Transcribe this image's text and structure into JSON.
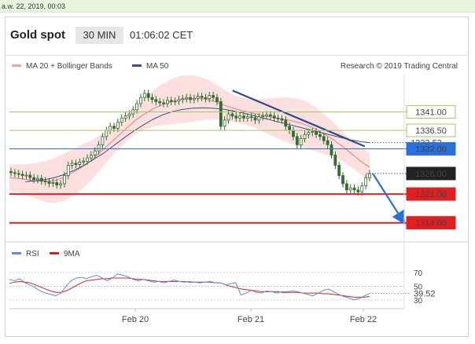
{
  "topbar": {
    "text": "a.w. 22, 2019, 00:03"
  },
  "header": {
    "title": "Gold spot",
    "interval": "30 MIN",
    "time": "01:06:02 CET"
  },
  "legend": {
    "bollinger_label": "MA 20 + Bollinger Bands",
    "ma50_label": "MA 50",
    "credit": "Research © 2019 Trading Central",
    "rsi_label": "RSI",
    "rsi_ma_label": "9MA"
  },
  "colors": {
    "green_level": "#9cc868",
    "blue_level": "#2b6fd9",
    "red_level": "#e02020",
    "dark_label": "#222222",
    "trend_line": "#2e4a8f",
    "bollinger_fill": "#fbdada",
    "ma20": "#e08080",
    "ma50": "#3a4f8a",
    "rsi_line": "#5b8fd8",
    "rsi_ma": "#d82020",
    "candle": "#2f6f2f"
  },
  "chart_data": [
    {
      "type": "candlestick",
      "title": "Gold spot",
      "interval": "30 MIN",
      "x_tick_labels": [
        "Feb 20",
        "Feb 21",
        "Feb 22"
      ],
      "ylim": [
        1310.5,
        1349.5
      ],
      "price_levels": [
        {
          "value": 1341.0,
          "label": "1341.00",
          "kind": "resistance",
          "color": "green"
        },
        {
          "value": 1336.5,
          "label": "1336.50",
          "kind": "resistance",
          "color": "green"
        },
        {
          "value": 1333.52,
          "label": "1333.52",
          "kind": "current-ma",
          "color": "dotted"
        },
        {
          "value": 1332.0,
          "label": "1332.00",
          "kind": "pivot",
          "color": "blue"
        },
        {
          "value": 1326.0,
          "label": "1326.00",
          "kind": "last",
          "color": "dark"
        },
        {
          "value": 1321.0,
          "label": "1321.00",
          "kind": "support",
          "color": "red"
        },
        {
          "value": 1314.0,
          "label": "1314.00",
          "kind": "support",
          "color": "red"
        }
      ],
      "close_series": [
        1326.2,
        1326.0,
        1325.8,
        1325.5,
        1325.6,
        1325.0,
        1324.5,
        1324.8,
        1324.2,
        1324.0,
        1323.6,
        1323.8,
        1323.2,
        1323.5,
        1325.5,
        1328.0,
        1328.5,
        1328.2,
        1328.8,
        1329.0,
        1329.8,
        1330.5,
        1331.5,
        1333.0,
        1335.0,
        1336.5,
        1337.5,
        1337.0,
        1338.5,
        1339.5,
        1340.0,
        1340.5,
        1341.5,
        1343.0,
        1344.5,
        1345.5,
        1344.5,
        1344.0,
        1343.5,
        1343.2,
        1343.0,
        1343.8,
        1343.5,
        1343.6,
        1344.0,
        1344.2,
        1344.5,
        1344.0,
        1344.3,
        1344.8,
        1344.5,
        1344.2,
        1345.0,
        1344.5,
        1343.5,
        1337.5,
        1339.0,
        1340.5,
        1340.0,
        1339.5,
        1340.0,
        1339.5,
        1339.8,
        1339.6,
        1339.0,
        1339.8,
        1340.0,
        1340.3,
        1340.0,
        1339.5,
        1339.3,
        1339.0,
        1337.5,
        1336.5,
        1335.0,
        1333.0,
        1334.5,
        1335.5,
        1336.0,
        1336.2,
        1335.5,
        1335.0,
        1334.0,
        1333.0,
        1330.5,
        1328.0,
        1325.5,
        1323.5,
        1322.0,
        1322.5,
        1322.0,
        1321.5,
        1323.0,
        1325.0,
        1326.0
      ],
      "ma20_series": [
        1325.0,
        1324.8,
        1324.5,
        1324.2,
        1324.0,
        1324.3,
        1325.0,
        1326.2,
        1327.5,
        1329.0,
        1331.0,
        1333.0,
        1335.0,
        1337.0,
        1339.0,
        1340.5,
        1341.8,
        1342.8,
        1343.5,
        1344.0,
        1344.2,
        1344.3,
        1344.0,
        1343.4,
        1342.5,
        1341.8,
        1341.2,
        1340.7,
        1340.2,
        1339.8,
        1339.4,
        1339.0,
        1338.5,
        1337.8,
        1336.8,
        1335.5,
        1334.2,
        1332.6,
        1330.8,
        1329.0,
        1327.5
      ],
      "ma50_series": [
        1324.0,
        1324.2,
        1324.5,
        1325.0,
        1325.8,
        1326.8,
        1328.0,
        1329.5,
        1331.0,
        1332.8,
        1334.6,
        1336.3,
        1337.8,
        1339.2,
        1340.3,
        1341.1,
        1341.6,
        1341.9,
        1342.0,
        1341.9,
        1341.7,
        1341.3,
        1340.8,
        1340.2,
        1339.6,
        1339.0,
        1338.4,
        1337.8,
        1337.2,
        1336.6,
        1336.0,
        1335.4,
        1334.8,
        1334.2,
        1333.8,
        1333.5
      ],
      "trend_line": {
        "from": {
          "x_frac": 0.565,
          "value": 1346.2
        },
        "to": {
          "x_frac": 0.9,
          "value": 1332.6
        }
      },
      "projection_arrow": {
        "from_value": 1326.0,
        "to_value": 1314.0
      }
    },
    {
      "type": "line",
      "title": "RSI",
      "ylim": [
        23,
        78
      ],
      "y_tick_labels": [
        "70",
        "50",
        "30"
      ],
      "y_ticks": [
        70,
        50,
        30
      ],
      "current_value": 39.52,
      "current_label": "39.52",
      "series": [
        {
          "name": "RSI",
          "values": [
            60,
            58,
            61,
            55,
            52,
            48,
            43,
            40,
            38,
            36,
            40,
            50,
            58,
            62,
            63,
            61,
            64,
            66,
            62,
            58,
            62,
            68,
            66,
            64,
            60,
            58,
            60,
            58,
            56,
            57,
            55,
            57,
            59,
            57,
            56,
            57,
            56,
            55,
            56,
            57,
            55,
            55,
            52,
            54,
            55,
            37,
            40,
            44,
            41,
            40,
            43,
            42,
            40,
            42,
            42,
            43,
            42,
            40,
            38,
            36,
            40,
            44,
            46,
            42,
            38,
            35,
            33,
            30,
            32,
            36,
            39.5
          ]
        },
        {
          "name": "9MA",
          "values": [
            54,
            56,
            57,
            56,
            55,
            52,
            49,
            46,
            43,
            41,
            41,
            43,
            47,
            51,
            55,
            58,
            59,
            60,
            61,
            61,
            62,
            62,
            62,
            62,
            61,
            60,
            60,
            59,
            58,
            57,
            57,
            57,
            57,
            57,
            57,
            56,
            56,
            56,
            56,
            56,
            55,
            55,
            52,
            50,
            48,
            46,
            45,
            44,
            43,
            42,
            42,
            42,
            42,
            41,
            41,
            41,
            41,
            40,
            40,
            40,
            40,
            39,
            39,
            38,
            37,
            36,
            35,
            34,
            34,
            34,
            35
          ]
        }
      ]
    }
  ]
}
